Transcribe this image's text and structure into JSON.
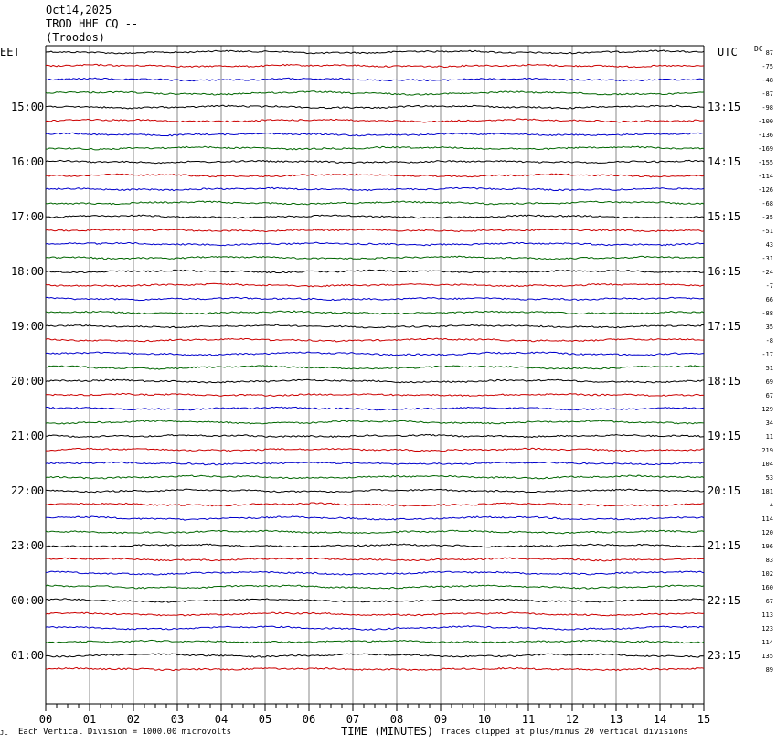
{
  "header": {
    "date": "Oct14,2025",
    "station": "TROD HHE CQ --",
    "location": "(Troodos)"
  },
  "labels": {
    "left_zone": "EET",
    "right_zone": "UTC",
    "dc": "DC"
  },
  "footer": {
    "scale": "Each Vertical Division = 1000.00 microvolts",
    "axis_title": "TIME (MINUTES)",
    "clip_note": "Traces clipped at plus/minus 20 vertical divisions",
    "corner_mark": "JL"
  },
  "chart_data": {
    "type": "line",
    "title": "Oct14,2025 TROD HHE CQ -- (Troodos)",
    "xlabel": "TIME (MINUTES)",
    "x_ticks": [
      "00",
      "01",
      "02",
      "03",
      "04",
      "05",
      "06",
      "07",
      "08",
      "09",
      "10",
      "11",
      "12",
      "13",
      "14",
      "15"
    ],
    "xlim": [
      0,
      15
    ],
    "trace_colors": [
      "#000000",
      "#cc0000",
      "#0000cc",
      "#006600"
    ],
    "left_hour_labels": [
      "15:00",
      "16:00",
      "17:00",
      "18:00",
      "19:00",
      "20:00",
      "21:00",
      "22:00",
      "23:00",
      "00:00",
      "01:00"
    ],
    "right_hour_labels": [
      "13:15",
      "14:15",
      "15:15",
      "16:15",
      "17:15",
      "18:15",
      "19:15",
      "20:15",
      "21:15",
      "22:15",
      "23:15"
    ],
    "hour_label_start_trace": 4,
    "dc_offsets": [
      87,
      -75,
      -48,
      -87,
      -98,
      -100,
      -136,
      -169,
      -155,
      -114,
      -126,
      -68,
      -35,
      -51,
      43,
      -31,
      -24,
      -7,
      66,
      -88,
      35,
      -8,
      -17,
      51,
      69,
      67,
      129,
      34,
      11,
      219,
      104,
      53,
      181,
      4,
      114,
      120,
      196,
      83,
      102,
      160,
      67,
      113,
      123,
      114,
      135,
      89
    ],
    "grid": true
  },
  "colors": {
    "grid": "#888888",
    "frame": "#000000"
  }
}
